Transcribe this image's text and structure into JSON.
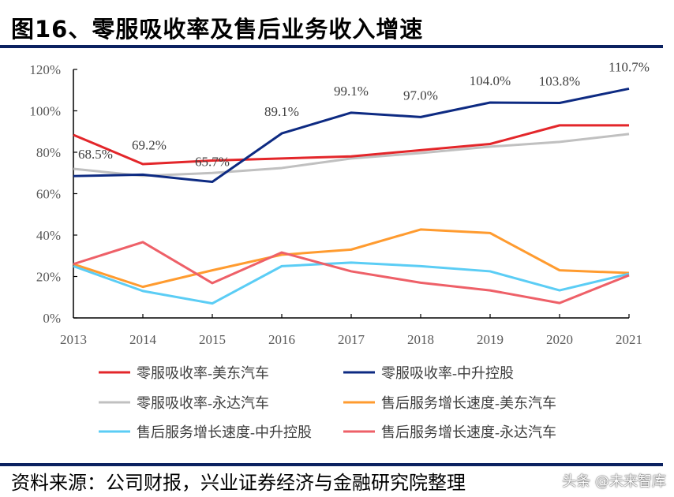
{
  "title": "图16、零服吸收率及售后业务收入增速",
  "source": "资料来源：公司财报，兴业证券经济与金融研究院整理",
  "watermark": "头条 @未来智库",
  "chart_data": {
    "type": "line",
    "title": "",
    "xlabel": "",
    "ylabel": "",
    "categories": [
      "2013",
      "2014",
      "2015",
      "2016",
      "2017",
      "2018",
      "2019",
      "2020",
      "2021"
    ],
    "ylim": [
      0,
      120
    ],
    "yticks": [
      "0%",
      "20%",
      "40%",
      "60%",
      "80%",
      "100%",
      "120%"
    ],
    "grid": false,
    "legend_position": "bottom",
    "series": [
      {
        "name": "零服吸收率-美东汽车",
        "color": "#e3262a",
        "values": [
          88.4,
          74.3,
          76,
          77,
          78,
          81,
          84,
          93,
          93
        ]
      },
      {
        "name": "零服吸收率-中升控股",
        "color": "#0d2a82",
        "values": [
          68.5,
          69.2,
          65.7,
          89.1,
          99.1,
          97.0,
          104.0,
          103.8,
          110.7
        ],
        "labels": [
          "68.5%",
          "69.2%",
          "65.7%",
          "89.1%",
          "99.1%",
          "97.0%",
          "104.0%",
          "103.8%",
          "110.7%"
        ]
      },
      {
        "name": "零服吸收率-永达汽车",
        "color": "#c0c0c0",
        "values": [
          72,
          68.6,
          70,
          72.4,
          77,
          79.6,
          82.7,
          85,
          88.8
        ]
      },
      {
        "name": "售后服务增长速度-美东汽车",
        "color": "#ff9b2f",
        "values": [
          26,
          15,
          23,
          30.5,
          33,
          42.7,
          41,
          23,
          21.7
        ]
      },
      {
        "name": "售后服务增长速度-中升控股",
        "color": "#5bcdf5",
        "values": [
          25,
          13,
          7,
          25,
          26.7,
          25,
          22.5,
          13.3,
          21.3
        ]
      },
      {
        "name": "售后服务增长速度-永达汽车",
        "color": "#ee6068",
        "values": [
          26,
          36.6,
          16.8,
          31.6,
          22.5,
          17,
          13.3,
          7.2,
          20.6
        ]
      }
    ]
  }
}
